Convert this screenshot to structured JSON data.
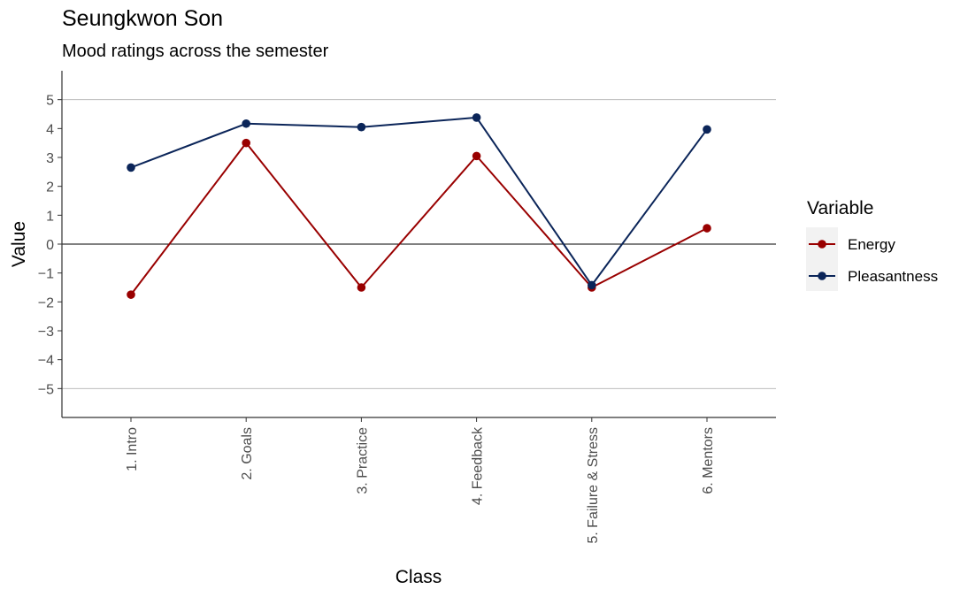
{
  "chart_data": {
    "type": "line",
    "title": "Seungkwon Son",
    "subtitle": "Mood ratings across the semester",
    "xlabel": "Class",
    "ylabel": "Value",
    "categories": [
      "1. Intro",
      "2. Goals",
      "3. Practice",
      "4. Feedback",
      "5. Failure & Stress",
      "6. Mentors"
    ],
    "yticks": [
      5,
      4,
      3,
      2,
      1,
      0,
      -1,
      -2,
      -3,
      -4,
      -5
    ],
    "ytick_labels": [
      "5",
      "4",
      "3",
      "2",
      "1",
      "0",
      "−1",
      "−2",
      "−3",
      "−4",
      "−5"
    ],
    "ylim": [
      -6.0,
      6.0
    ],
    "reference_lines": [
      5,
      0,
      -5
    ],
    "legend": {
      "title": "Variable",
      "position": "right"
    },
    "series": [
      {
        "name": "Energy",
        "color": "#990000",
        "values": [
          -1.75,
          3.5,
          -1.5,
          3.05,
          -1.5,
          0.55
        ]
      },
      {
        "name": "Pleasantness",
        "color": "#0b2559",
        "values": [
          2.65,
          4.17,
          4.05,
          4.38,
          -1.42,
          3.97
        ]
      }
    ]
  }
}
